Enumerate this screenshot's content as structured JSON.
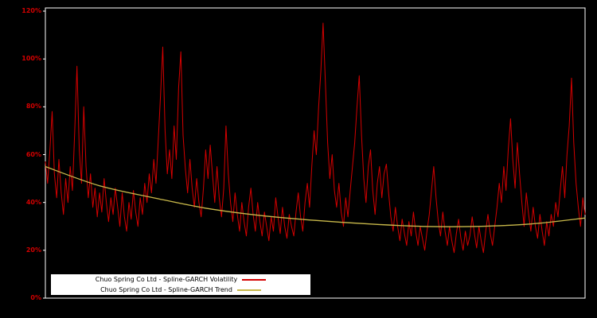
{
  "chart_data": {
    "type": "line",
    "title": "",
    "xlabel": "",
    "ylabel": "",
    "grid": false,
    "background": "#000000",
    "frame_color": "#ffffff",
    "tick_label_color": "#d40000",
    "ylim": [
      0,
      1.2
    ],
    "yticks": [
      "0%",
      "20%",
      "40%",
      "60%",
      "80%",
      "100%",
      "120%"
    ],
    "ytick_values": [
      0,
      0.2,
      0.4,
      0.6,
      0.8,
      1.0,
      1.2
    ],
    "x_axis_labels": "none",
    "legend_position": "bottom-left-inside",
    "series": [
      {
        "name": "Chuo Spring Co Ltd - Spline-GARCH Volatility",
        "color": "#d40000",
        "smooth": false,
        "width": 1,
        "values": [
          0.57,
          0.48,
          0.62,
          0.78,
          0.52,
          0.42,
          0.58,
          0.44,
          0.35,
          0.5,
          0.4,
          0.55,
          0.45,
          0.7,
          0.97,
          0.62,
          0.48,
          0.8,
          0.55,
          0.42,
          0.52,
          0.38,
          0.46,
          0.34,
          0.44,
          0.36,
          0.5,
          0.4,
          0.32,
          0.42,
          0.35,
          0.46,
          0.38,
          0.3,
          0.44,
          0.34,
          0.28,
          0.4,
          0.33,
          0.45,
          0.36,
          0.3,
          0.42,
          0.35,
          0.48,
          0.4,
          0.52,
          0.44,
          0.58,
          0.48,
          0.66,
          0.85,
          1.05,
          0.7,
          0.52,
          0.62,
          0.5,
          0.72,
          0.58,
          0.88,
          1.03,
          0.68,
          0.54,
          0.44,
          0.58,
          0.46,
          0.38,
          0.5,
          0.4,
          0.34,
          0.46,
          0.62,
          0.5,
          0.64,
          0.52,
          0.4,
          0.55,
          0.42,
          0.34,
          0.46,
          0.72,
          0.52,
          0.4,
          0.32,
          0.44,
          0.35,
          0.28,
          0.4,
          0.32,
          0.26,
          0.38,
          0.46,
          0.35,
          0.28,
          0.4,
          0.32,
          0.26,
          0.36,
          0.3,
          0.24,
          0.34,
          0.28,
          0.42,
          0.34,
          0.27,
          0.38,
          0.3,
          0.25,
          0.35,
          0.3,
          0.26,
          0.36,
          0.44,
          0.34,
          0.28,
          0.4,
          0.48,
          0.38,
          0.55,
          0.7,
          0.6,
          0.8,
          0.95,
          1.15,
          0.9,
          0.65,
          0.5,
          0.6,
          0.45,
          0.38,
          0.48,
          0.36,
          0.3,
          0.42,
          0.34,
          0.45,
          0.55,
          0.65,
          0.8,
          0.93,
          0.68,
          0.5,
          0.4,
          0.55,
          0.62,
          0.45,
          0.35,
          0.48,
          0.55,
          0.42,
          0.52,
          0.56,
          0.44,
          0.34,
          0.28,
          0.38,
          0.3,
          0.24,
          0.33,
          0.27,
          0.22,
          0.32,
          0.26,
          0.36,
          0.28,
          0.22,
          0.3,
          0.25,
          0.2,
          0.28,
          0.35,
          0.45,
          0.55,
          0.42,
          0.32,
          0.26,
          0.36,
          0.28,
          0.22,
          0.3,
          0.24,
          0.19,
          0.27,
          0.33,
          0.25,
          0.2,
          0.28,
          0.22,
          0.26,
          0.34,
          0.27,
          0.21,
          0.3,
          0.24,
          0.19,
          0.28,
          0.35,
          0.27,
          0.22,
          0.3,
          0.38,
          0.48,
          0.4,
          0.55,
          0.45,
          0.62,
          0.75,
          0.58,
          0.46,
          0.65,
          0.52,
          0.4,
          0.3,
          0.44,
          0.35,
          0.28,
          0.38,
          0.3,
          0.25,
          0.35,
          0.28,
          0.22,
          0.32,
          0.26,
          0.35,
          0.3,
          0.4,
          0.34,
          0.45,
          0.55,
          0.42,
          0.6,
          0.72,
          0.92,
          0.65,
          0.48,
          0.38,
          0.3,
          0.42,
          0.35
        ]
      },
      {
        "name": "Chuo Spring Co Ltd - Spline-GARCH Trend",
        "color": "#c8b84a",
        "smooth": true,
        "width": 1.3,
        "values": [
          0.55,
          0.47,
          0.42,
          0.375,
          0.345,
          0.325,
          0.31,
          0.3,
          0.3,
          0.31,
          0.335
        ]
      }
    ]
  },
  "legend": {
    "items": [
      {
        "label": "Chuo Spring Co Ltd - Spline-GARCH Volatility",
        "color": "#d40000"
      },
      {
        "label": "Chuo Spring Co Ltd - Spline-GARCH Trend",
        "color": "#c8b84a"
      }
    ]
  }
}
